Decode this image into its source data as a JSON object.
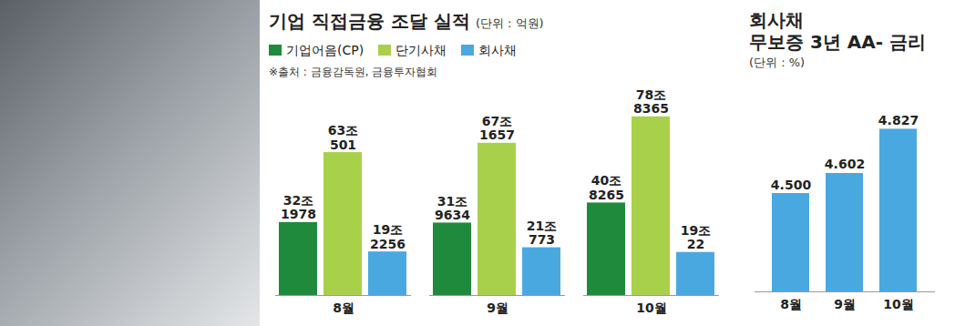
{
  "chart_data": [
    {
      "type": "bar",
      "title": "기업 직접금융 조달 실적",
      "subtitle": "(단위 : 억원)",
      "source": "※출처 : 금융감독원, 금융투자협회",
      "categories": [
        "8월",
        "9월",
        "10월"
      ],
      "series": [
        {
          "name": "기업어음(CP)",
          "color": "#1f8a3c",
          "values": [
            321978,
            319634,
            408265
          ],
          "value_labels": [
            "32조 1978",
            "31조 9634",
            "40조 8265"
          ]
        },
        {
          "name": "단기사채",
          "color": "#a8d04a",
          "values": [
            630501,
            671657,
            788365
          ],
          "value_labels": [
            "63조 501",
            "67조 1657",
            "78조 8365"
          ]
        },
        {
          "name": "회사채",
          "color": "#4aa8e0",
          "values": [
            192256,
            210773,
            190022
          ],
          "value_labels": [
            "19조 2256",
            "21조 773",
            "19조 22"
          ]
        }
      ],
      "ylim": [
        0,
        900000
      ],
      "data_labels": true,
      "legend": "top-left",
      "tick_labels": "x"
    },
    {
      "type": "bar",
      "title": "회사채 무보증 3년 AA- 금리",
      "subtitle": "(단위 : %)",
      "categories": [
        "8월",
        "9월",
        "10월"
      ],
      "values": [
        4.5,
        4.602,
        4.827
      ],
      "value_labels": [
        "4.500",
        "4.602",
        "4.827"
      ],
      "color": "#4aa8e0",
      "ylim": [
        4,
        5
      ],
      "data_labels": true,
      "tick_labels": "x"
    }
  ]
}
